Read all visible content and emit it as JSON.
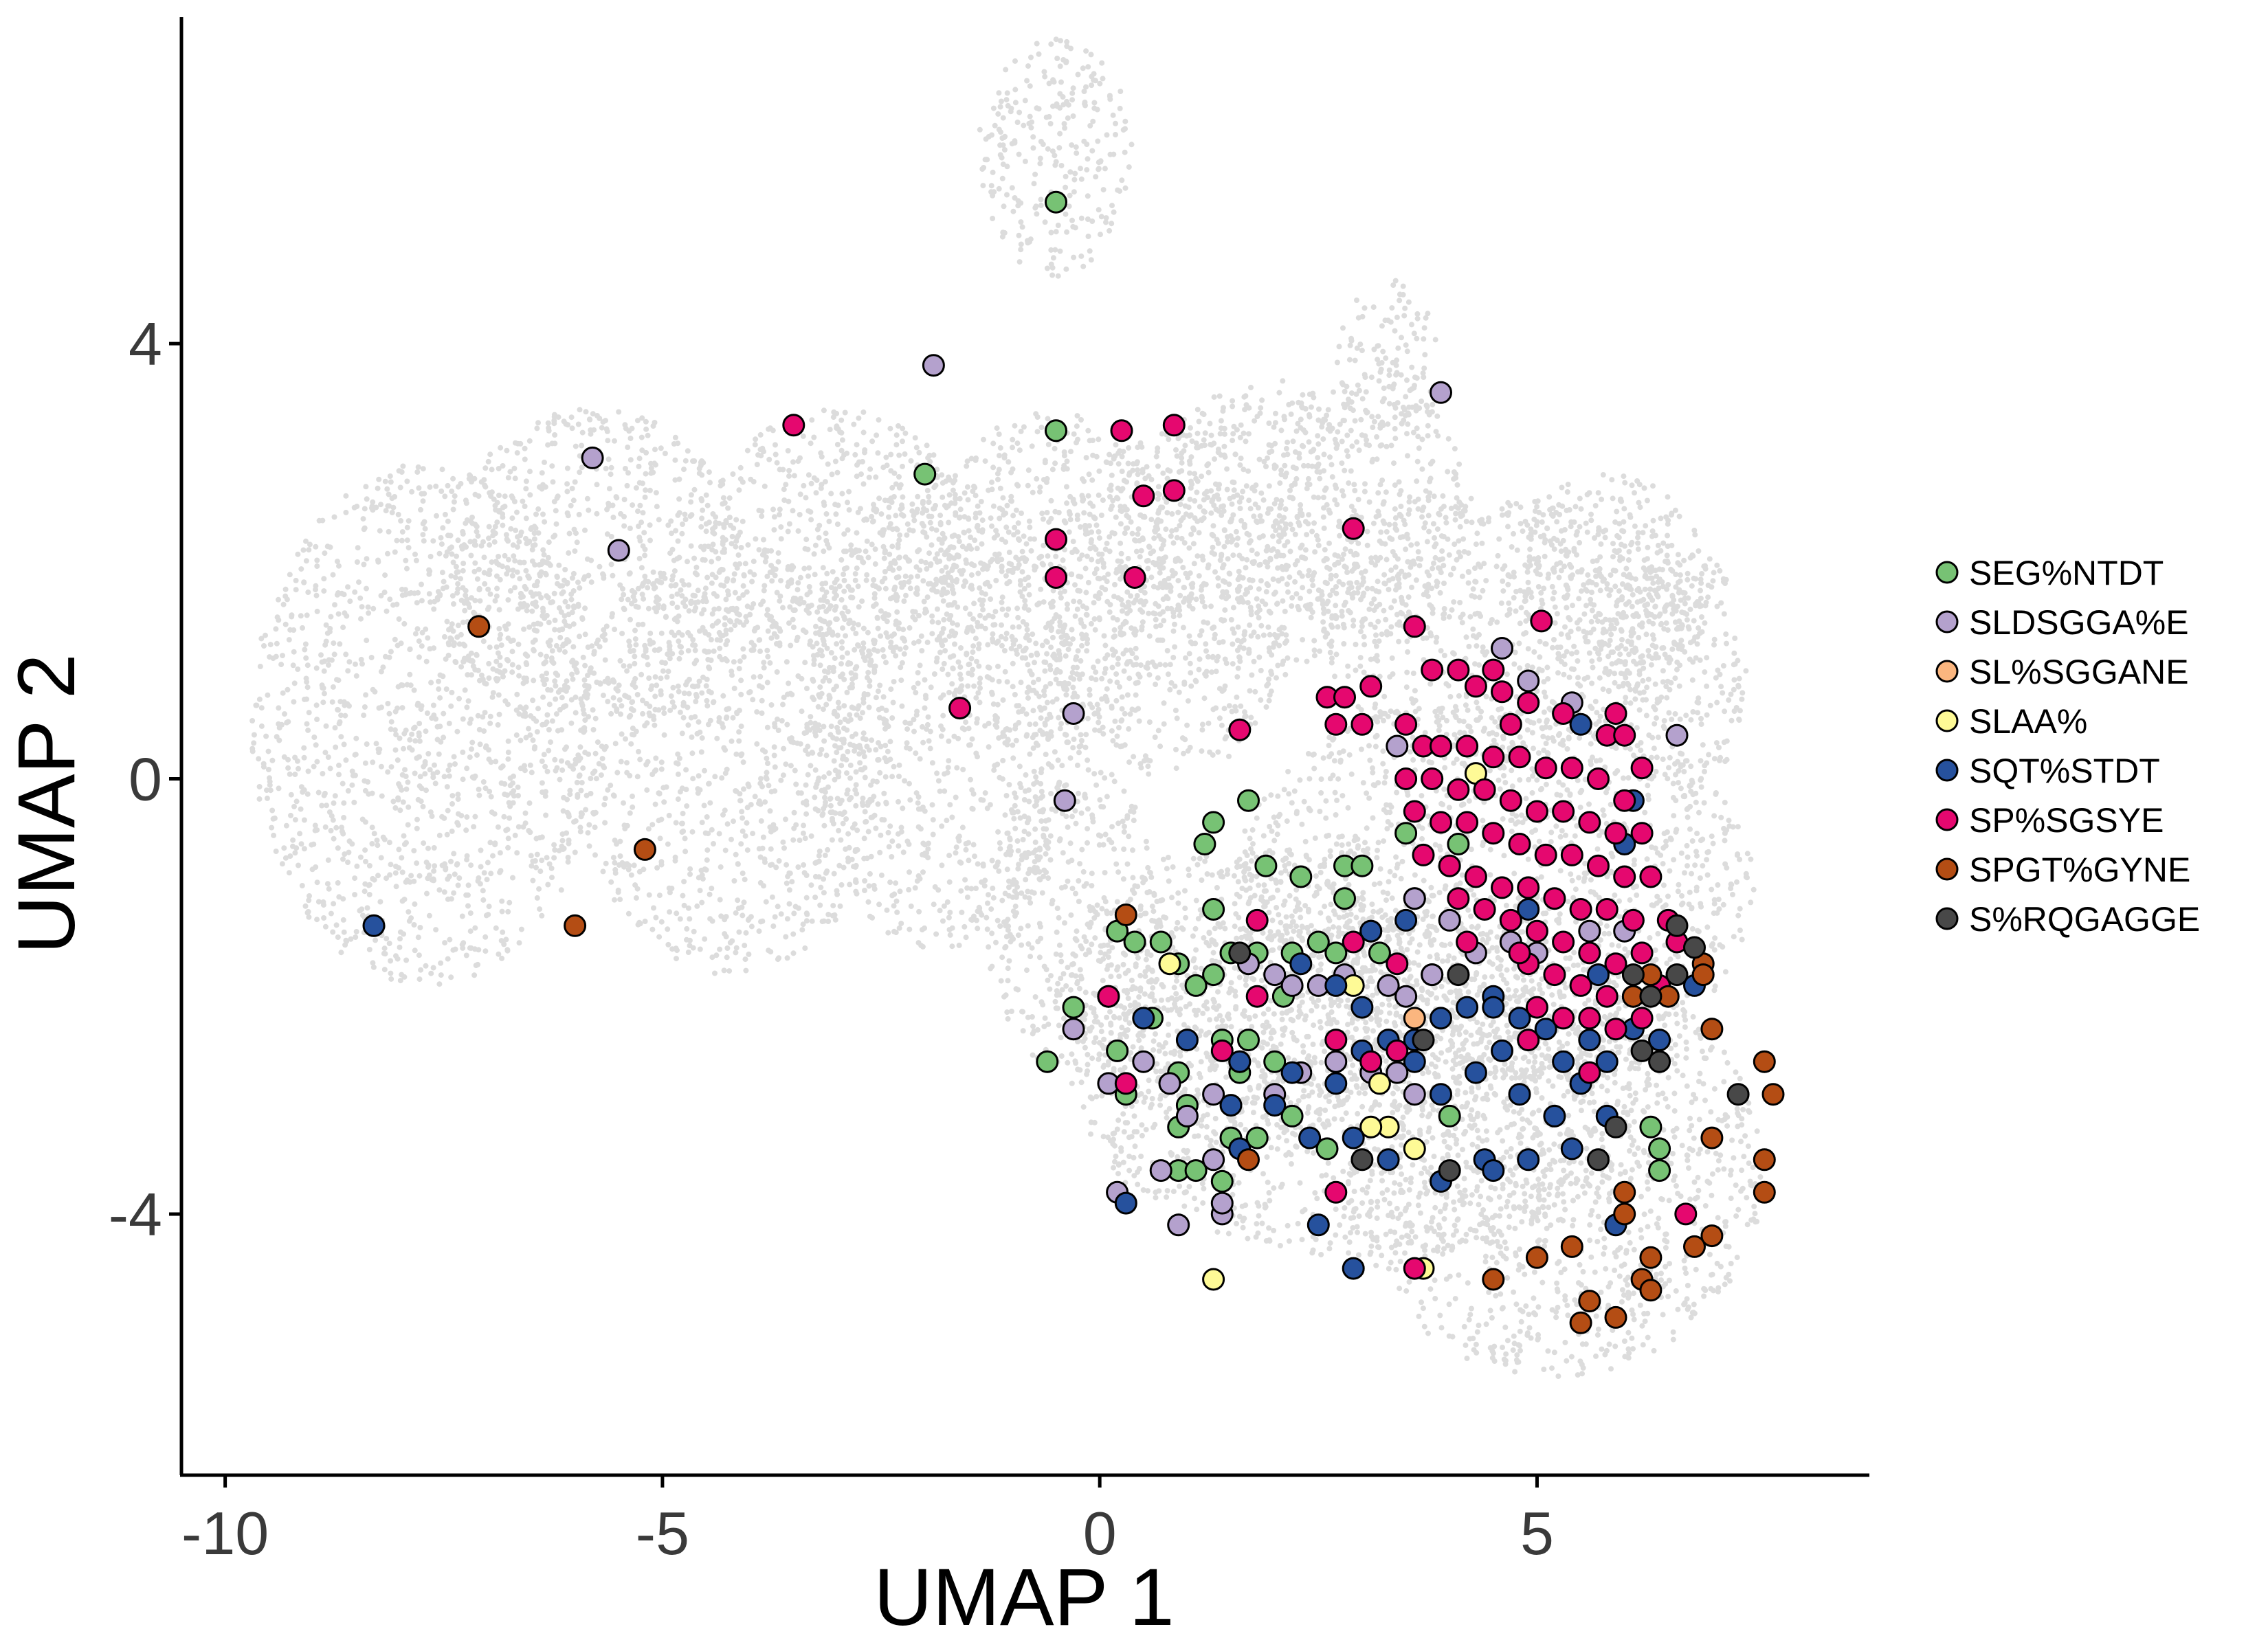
{
  "chart_data": {
    "type": "scatter",
    "xlabel": "UMAP 1",
    "ylabel": "UMAP 2",
    "xlim": [
      -10.5,
      8.8
    ],
    "ylim": [
      -6.4,
      7.0
    ],
    "xticks": [
      -10,
      -5,
      0,
      5
    ],
    "xtick_labels": [
      "-10",
      "-5",
      "0",
      "5"
    ],
    "yticks": [
      4,
      0,
      -4
    ],
    "ytick_labels": [
      "4",
      "0",
      "-4"
    ],
    "grid": false,
    "legend_position": "right",
    "background_color": "#dcdcdc",
    "series": [
      {
        "name": "SEG%NTDT",
        "color": "#77c274",
        "points": [
          [
            -0.5,
            5.3
          ],
          [
            -0.5,
            3.2
          ],
          [
            -2.0,
            2.8
          ],
          [
            0.2,
            -1.4
          ],
          [
            0.4,
            -1.5
          ],
          [
            0.7,
            -1.5
          ],
          [
            1.3,
            -0.4
          ],
          [
            1.2,
            -0.6
          ],
          [
            1.3,
            -1.2
          ],
          [
            1.7,
            -0.2
          ],
          [
            1.9,
            -0.8
          ],
          [
            2.3,
            -0.9
          ],
          [
            2.8,
            -0.8
          ],
          [
            3.0,
            -0.8
          ],
          [
            2.8,
            -1.1
          ],
          [
            3.5,
            -0.5
          ],
          [
            3.6,
            -1.1
          ],
          [
            4.1,
            -0.6
          ],
          [
            0.9,
            -1.7
          ],
          [
            1.1,
            -1.9
          ],
          [
            1.3,
            -1.8
          ],
          [
            1.5,
            -1.6
          ],
          [
            1.8,
            -1.6
          ],
          [
            2.2,
            -1.6
          ],
          [
            2.5,
            -1.5
          ],
          [
            2.7,
            -1.6
          ],
          [
            3.1,
            -1.4
          ],
          [
            -0.3,
            -2.1
          ],
          [
            -0.6,
            -2.6
          ],
          [
            0.2,
            -2.5
          ],
          [
            0.6,
            -2.2
          ],
          [
            0.9,
            -2.7
          ],
          [
            1.0,
            -3.0
          ],
          [
            1.4,
            -2.4
          ],
          [
            1.6,
            -2.7
          ],
          [
            2.0,
            -2.6
          ],
          [
            0.3,
            -2.9
          ],
          [
            0.9,
            -3.2
          ],
          [
            1.5,
            -3.3
          ],
          [
            1.8,
            -3.3
          ],
          [
            2.2,
            -3.1
          ],
          [
            2.6,
            -3.4
          ],
          [
            0.9,
            -3.6
          ],
          [
            1.1,
            -3.6
          ],
          [
            1.4,
            -3.7
          ],
          [
            4.0,
            -3.1
          ],
          [
            6.3,
            -3.2
          ],
          [
            6.4,
            -3.4
          ],
          [
            6.4,
            -3.6
          ],
          [
            3.8,
            -1.8
          ],
          [
            3.2,
            -1.6
          ],
          [
            2.1,
            -2.0
          ],
          [
            1.7,
            -2.4
          ]
        ]
      },
      {
        "name": "SLDSGGA%E",
        "color": "#b4a1cd",
        "points": [
          [
            -5.8,
            2.95
          ],
          [
            -5.5,
            2.1
          ],
          [
            -1.9,
            3.8
          ],
          [
            3.9,
            3.55
          ],
          [
            4.6,
            1.2
          ],
          [
            4.9,
            0.9
          ],
          [
            5.4,
            0.7
          ],
          [
            6.6,
            0.4
          ],
          [
            -0.3,
            0.6
          ],
          [
            -0.4,
            -0.2
          ],
          [
            3.4,
            0.3
          ],
          [
            3.6,
            -1.1
          ],
          [
            4.0,
            -1.3
          ],
          [
            4.3,
            -1.6
          ],
          [
            4.7,
            -1.5
          ],
          [
            5.0,
            -1.6
          ],
          [
            5.6,
            -1.4
          ],
          [
            6.0,
            -1.4
          ],
          [
            1.7,
            -1.7
          ],
          [
            2.0,
            -1.8
          ],
          [
            2.2,
            -1.9
          ],
          [
            2.5,
            -1.9
          ],
          [
            2.8,
            -1.8
          ],
          [
            3.3,
            -1.9
          ],
          [
            3.5,
            -2.0
          ],
          [
            3.8,
            -1.8
          ],
          [
            -0.3,
            -2.3
          ],
          [
            0.1,
            -2.8
          ],
          [
            0.5,
            -2.6
          ],
          [
            0.8,
            -2.8
          ],
          [
            1.0,
            -3.1
          ],
          [
            1.3,
            -2.9
          ],
          [
            1.6,
            -2.6
          ],
          [
            2.0,
            -2.9
          ],
          [
            2.3,
            -2.7
          ],
          [
            2.7,
            -2.6
          ],
          [
            3.1,
            -2.7
          ],
          [
            3.4,
            -2.7
          ],
          [
            3.6,
            -2.9
          ],
          [
            0.2,
            -3.8
          ],
          [
            0.7,
            -3.6
          ],
          [
            1.3,
            -3.5
          ],
          [
            1.4,
            -4.0
          ],
          [
            0.9,
            -4.1
          ],
          [
            1.4,
            -3.9
          ]
        ]
      },
      {
        "name": "SL%SGGANE",
        "color": "#fbb67f",
        "points": [
          [
            3.6,
            -2.2
          ]
        ]
      },
      {
        "name": "SLAA%",
        "color": "#fefa96",
        "points": [
          [
            4.3,
            0.05
          ],
          [
            0.8,
            -1.7
          ],
          [
            3.2,
            -2.8
          ],
          [
            3.3,
            -3.2
          ],
          [
            3.6,
            -3.4
          ],
          [
            3.7,
            -4.5
          ],
          [
            1.3,
            -4.6
          ],
          [
            2.9,
            -1.9
          ],
          [
            3.1,
            -3.2
          ]
        ]
      },
      {
        "name": "SQT%STDT",
        "color": "#26519d",
        "points": [
          [
            -8.3,
            -1.35
          ],
          [
            5.5,
            0.5
          ],
          [
            6.1,
            -0.2
          ],
          [
            6.0,
            -0.6
          ],
          [
            4.9,
            -1.2
          ],
          [
            3.5,
            -1.3
          ],
          [
            3.1,
            -1.4
          ],
          [
            2.3,
            -1.7
          ],
          [
            2.7,
            -1.9
          ],
          [
            3.0,
            -2.1
          ],
          [
            3.3,
            -2.4
          ],
          [
            3.6,
            -2.4
          ],
          [
            3.9,
            -2.2
          ],
          [
            4.2,
            -2.1
          ],
          [
            4.5,
            -2.0
          ],
          [
            4.6,
            -2.5
          ],
          [
            4.8,
            -2.2
          ],
          [
            5.1,
            -2.3
          ],
          [
            5.3,
            -2.6
          ],
          [
            5.6,
            -2.4
          ],
          [
            5.8,
            -2.6
          ],
          [
            6.1,
            -2.3
          ],
          [
            6.4,
            -2.4
          ],
          [
            6.8,
            -1.9
          ],
          [
            1.0,
            -2.4
          ],
          [
            1.6,
            -2.6
          ],
          [
            2.2,
            -2.7
          ],
          [
            2.7,
            -2.8
          ],
          [
            3.0,
            -2.5
          ],
          [
            3.6,
            -2.6
          ],
          [
            3.9,
            -2.9
          ],
          [
            4.3,
            -2.7
          ],
          [
            4.8,
            -2.9
          ],
          [
            5.2,
            -3.1
          ],
          [
            5.5,
            -2.8
          ],
          [
            5.8,
            -3.1
          ],
          [
            1.5,
            -3.0
          ],
          [
            2.0,
            -3.0
          ],
          [
            2.4,
            -3.3
          ],
          [
            2.9,
            -3.3
          ],
          [
            3.3,
            -3.5
          ],
          [
            3.9,
            -3.7
          ],
          [
            4.4,
            -3.5
          ],
          [
            4.9,
            -3.5
          ],
          [
            5.4,
            -3.4
          ],
          [
            1.6,
            -3.4
          ],
          [
            4.5,
            -3.6
          ],
          [
            2.5,
            -4.1
          ],
          [
            2.9,
            -4.5
          ],
          [
            5.9,
            -4.1
          ],
          [
            0.3,
            -3.9
          ],
          [
            0.1,
            -2.0
          ],
          [
            0.5,
            -2.2
          ],
          [
            5.7,
            -1.8
          ],
          [
            4.5,
            -2.1
          ]
        ]
      },
      {
        "name": "SP%SGSYE",
        "color": "#e5086f",
        "points": [
          [
            -3.5,
            3.25
          ],
          [
            0.25,
            3.2
          ],
          [
            0.85,
            3.25
          ],
          [
            0.5,
            2.6
          ],
          [
            0.85,
            2.65
          ],
          [
            -0.5,
            2.2
          ],
          [
            -0.5,
            1.85
          ],
          [
            0.4,
            1.85
          ],
          [
            2.9,
            2.3
          ],
          [
            -1.6,
            0.65
          ],
          [
            1.6,
            0.45
          ],
          [
            2.6,
            0.75
          ],
          [
            2.8,
            0.75
          ],
          [
            3.1,
            0.85
          ],
          [
            2.7,
            0.5
          ],
          [
            3.0,
            0.5
          ],
          [
            5.05,
            1.45
          ],
          [
            3.6,
            1.4
          ],
          [
            3.8,
            1.0
          ],
          [
            4.1,
            1.0
          ],
          [
            4.3,
            0.85
          ],
          [
            4.6,
            0.8
          ],
          [
            4.9,
            0.7
          ],
          [
            5.3,
            0.6
          ],
          [
            5.8,
            0.4
          ],
          [
            6.0,
            0.4
          ],
          [
            6.2,
            0.1
          ],
          [
            3.5,
            0.5
          ],
          [
            3.7,
            0.3
          ],
          [
            3.9,
            0.3
          ],
          [
            4.2,
            0.3
          ],
          [
            4.5,
            0.2
          ],
          [
            4.8,
            0.2
          ],
          [
            5.1,
            0.1
          ],
          [
            5.4,
            0.1
          ],
          [
            5.7,
            0.0
          ],
          [
            6.0,
            -0.2
          ],
          [
            3.5,
            0.0
          ],
          [
            3.8,
            0.0
          ],
          [
            4.1,
            -0.1
          ],
          [
            4.4,
            -0.1
          ],
          [
            4.7,
            -0.2
          ],
          [
            5.0,
            -0.3
          ],
          [
            5.3,
            -0.3
          ],
          [
            5.6,
            -0.4
          ],
          [
            5.9,
            -0.5
          ],
          [
            6.2,
            -0.5
          ],
          [
            3.6,
            -0.3
          ],
          [
            3.9,
            -0.4
          ],
          [
            4.2,
            -0.4
          ],
          [
            4.5,
            -0.5
          ],
          [
            4.8,
            -0.6
          ],
          [
            5.1,
            -0.7
          ],
          [
            5.4,
            -0.7
          ],
          [
            5.7,
            -0.8
          ],
          [
            6.0,
            -0.9
          ],
          [
            6.3,
            -0.9
          ],
          [
            3.7,
            -0.7
          ],
          [
            4.0,
            -0.8
          ],
          [
            4.3,
            -0.9
          ],
          [
            4.6,
            -1.0
          ],
          [
            4.9,
            -1.0
          ],
          [
            5.2,
            -1.1
          ],
          [
            5.5,
            -1.2
          ],
          [
            5.8,
            -1.2
          ],
          [
            6.1,
            -1.3
          ],
          [
            6.5,
            -1.3
          ],
          [
            4.1,
            -1.1
          ],
          [
            4.4,
            -1.2
          ],
          [
            4.7,
            -1.3
          ],
          [
            5.0,
            -1.4
          ],
          [
            5.3,
            -1.5
          ],
          [
            5.6,
            -1.6
          ],
          [
            5.9,
            -1.7
          ],
          [
            6.2,
            -1.6
          ],
          [
            6.6,
            -1.5
          ],
          [
            4.9,
            -1.7
          ],
          [
            5.2,
            -1.8
          ],
          [
            5.5,
            -1.9
          ],
          [
            5.8,
            -2.0
          ],
          [
            6.1,
            -2.0
          ],
          [
            6.4,
            -1.9
          ],
          [
            5.0,
            -2.1
          ],
          [
            5.3,
            -2.2
          ],
          [
            5.6,
            -2.2
          ],
          [
            5.9,
            -2.3
          ],
          [
            6.2,
            -2.2
          ],
          [
            4.9,
            -2.4
          ],
          [
            5.6,
            -2.7
          ],
          [
            3.1,
            -2.6
          ],
          [
            3.4,
            -2.5
          ],
          [
            2.7,
            -2.4
          ],
          [
            1.8,
            -1.3
          ],
          [
            1.4,
            -2.5
          ],
          [
            3.4,
            -1.7
          ],
          [
            2.9,
            -1.5
          ],
          [
            4.2,
            -1.5
          ],
          [
            4.8,
            -1.6
          ],
          [
            0.1,
            -2.0
          ],
          [
            0.3,
            -2.8
          ],
          [
            1.8,
            -2.0
          ],
          [
            2.7,
            -3.8
          ],
          [
            3.6,
            -4.5
          ],
          [
            6.7,
            -4.0
          ],
          [
            4.5,
            1.0
          ],
          [
            4.7,
            0.5
          ],
          [
            5.9,
            0.6
          ]
        ]
      },
      {
        "name": "SPGT%GYNE",
        "color": "#b44d14",
        "points": [
          [
            -7.1,
            1.4
          ],
          [
            -5.2,
            -0.65
          ],
          [
            -6.0,
            -1.35
          ],
          [
            0.3,
            -1.25
          ],
          [
            1.7,
            -3.5
          ],
          [
            6.9,
            -1.7
          ],
          [
            6.9,
            -1.8
          ],
          [
            7.0,
            -2.3
          ],
          [
            7.6,
            -2.6
          ],
          [
            7.7,
            -2.9
          ],
          [
            7.6,
            -3.5
          ],
          [
            7.6,
            -3.8
          ],
          [
            7.0,
            -3.3
          ],
          [
            6.0,
            -3.8
          ],
          [
            6.0,
            -4.0
          ],
          [
            5.4,
            -4.3
          ],
          [
            5.0,
            -4.4
          ],
          [
            4.5,
            -4.6
          ],
          [
            5.6,
            -4.8
          ],
          [
            5.5,
            -5.0
          ],
          [
            5.9,
            -4.95
          ],
          [
            6.2,
            -4.6
          ],
          [
            6.3,
            -4.7
          ],
          [
            6.3,
            -4.4
          ],
          [
            6.8,
            -4.3
          ],
          [
            7.0,
            -4.2
          ],
          [
            6.5,
            -2.0
          ],
          [
            6.3,
            -1.8
          ],
          [
            6.1,
            -2.0
          ]
        ]
      },
      {
        "name": "S%RQGAGGE",
        "color": "#484848",
        "points": [
          [
            1.6,
            -1.6
          ],
          [
            6.6,
            -1.35
          ],
          [
            6.8,
            -1.55
          ],
          [
            6.6,
            -1.8
          ],
          [
            6.3,
            -2.0
          ],
          [
            6.4,
            -2.6
          ],
          [
            6.2,
            -2.5
          ],
          [
            5.9,
            -3.2
          ],
          [
            5.7,
            -3.5
          ],
          [
            4.0,
            -3.6
          ],
          [
            3.0,
            -3.5
          ],
          [
            6.1,
            -1.8
          ],
          [
            4.1,
            -1.8
          ],
          [
            3.7,
            -2.4
          ],
          [
            7.3,
            -2.9
          ]
        ]
      }
    ]
  }
}
